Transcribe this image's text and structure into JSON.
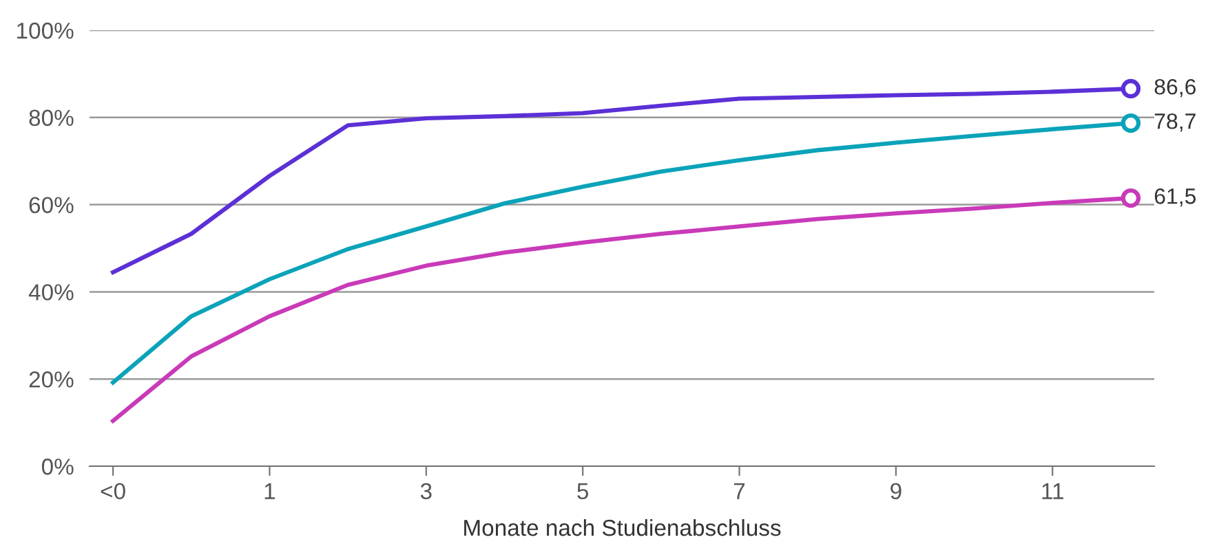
{
  "chart_data": {
    "type": "line",
    "xlabel": "Monate nach Studienabschluss",
    "x": [
      -1,
      0,
      1,
      2,
      3,
      4,
      5,
      6,
      7,
      8,
      9,
      10,
      11,
      12
    ],
    "series": [
      {
        "color": "#5b30d6",
        "values": [
          44.5,
          53.3,
          66.6,
          78.2,
          79.8,
          80.3,
          81.0,
          82.7,
          84.3,
          84.7,
          85.1,
          85.4,
          85.9,
          86.6
        ],
        "value_labels": [
          null,
          null,
          null,
          null,
          null,
          null,
          null,
          null,
          null,
          null,
          null,
          null,
          null,
          "86,6"
        ]
      },
      {
        "color": "#0ba3b9",
        "values": [
          19.2,
          34.4,
          42.9,
          49.8,
          55.0,
          60.3,
          64.1,
          67.6,
          70.2,
          72.5,
          74.2,
          75.8,
          77.3,
          78.7
        ],
        "value_labels": [
          null,
          null,
          null,
          null,
          null,
          null,
          null,
          null,
          null,
          null,
          null,
          null,
          null,
          "78,7"
        ]
      },
      {
        "color": "#c93ab9",
        "values": [
          10.4,
          25.2,
          34.4,
          41.6,
          46.0,
          49.0,
          51.3,
          53.3,
          55.0,
          56.7,
          58.0,
          59.1,
          60.4,
          61.5
        ],
        "value_labels": [
          null,
          null,
          null,
          null,
          null,
          null,
          null,
          null,
          null,
          null,
          null,
          null,
          null,
          "61,5"
        ]
      }
    ],
    "xlim": [
      -1.3,
      12.3
    ],
    "xticks": [
      {
        "value": -1,
        "label": "<0"
      },
      1,
      3,
      5,
      7,
      9,
      11
    ],
    "ylim": [
      0,
      100
    ],
    "yticks": [
      {
        "value": 0,
        "label": "0%"
      },
      {
        "value": 20,
        "label": "20%"
      },
      {
        "value": 40,
        "label": "40%"
      },
      {
        "value": 60,
        "label": "60%"
      },
      {
        "value": 80,
        "label": "80%"
      },
      {
        "value": 100,
        "label": "100%"
      }
    ],
    "grid": "y",
    "legend": false
  }
}
